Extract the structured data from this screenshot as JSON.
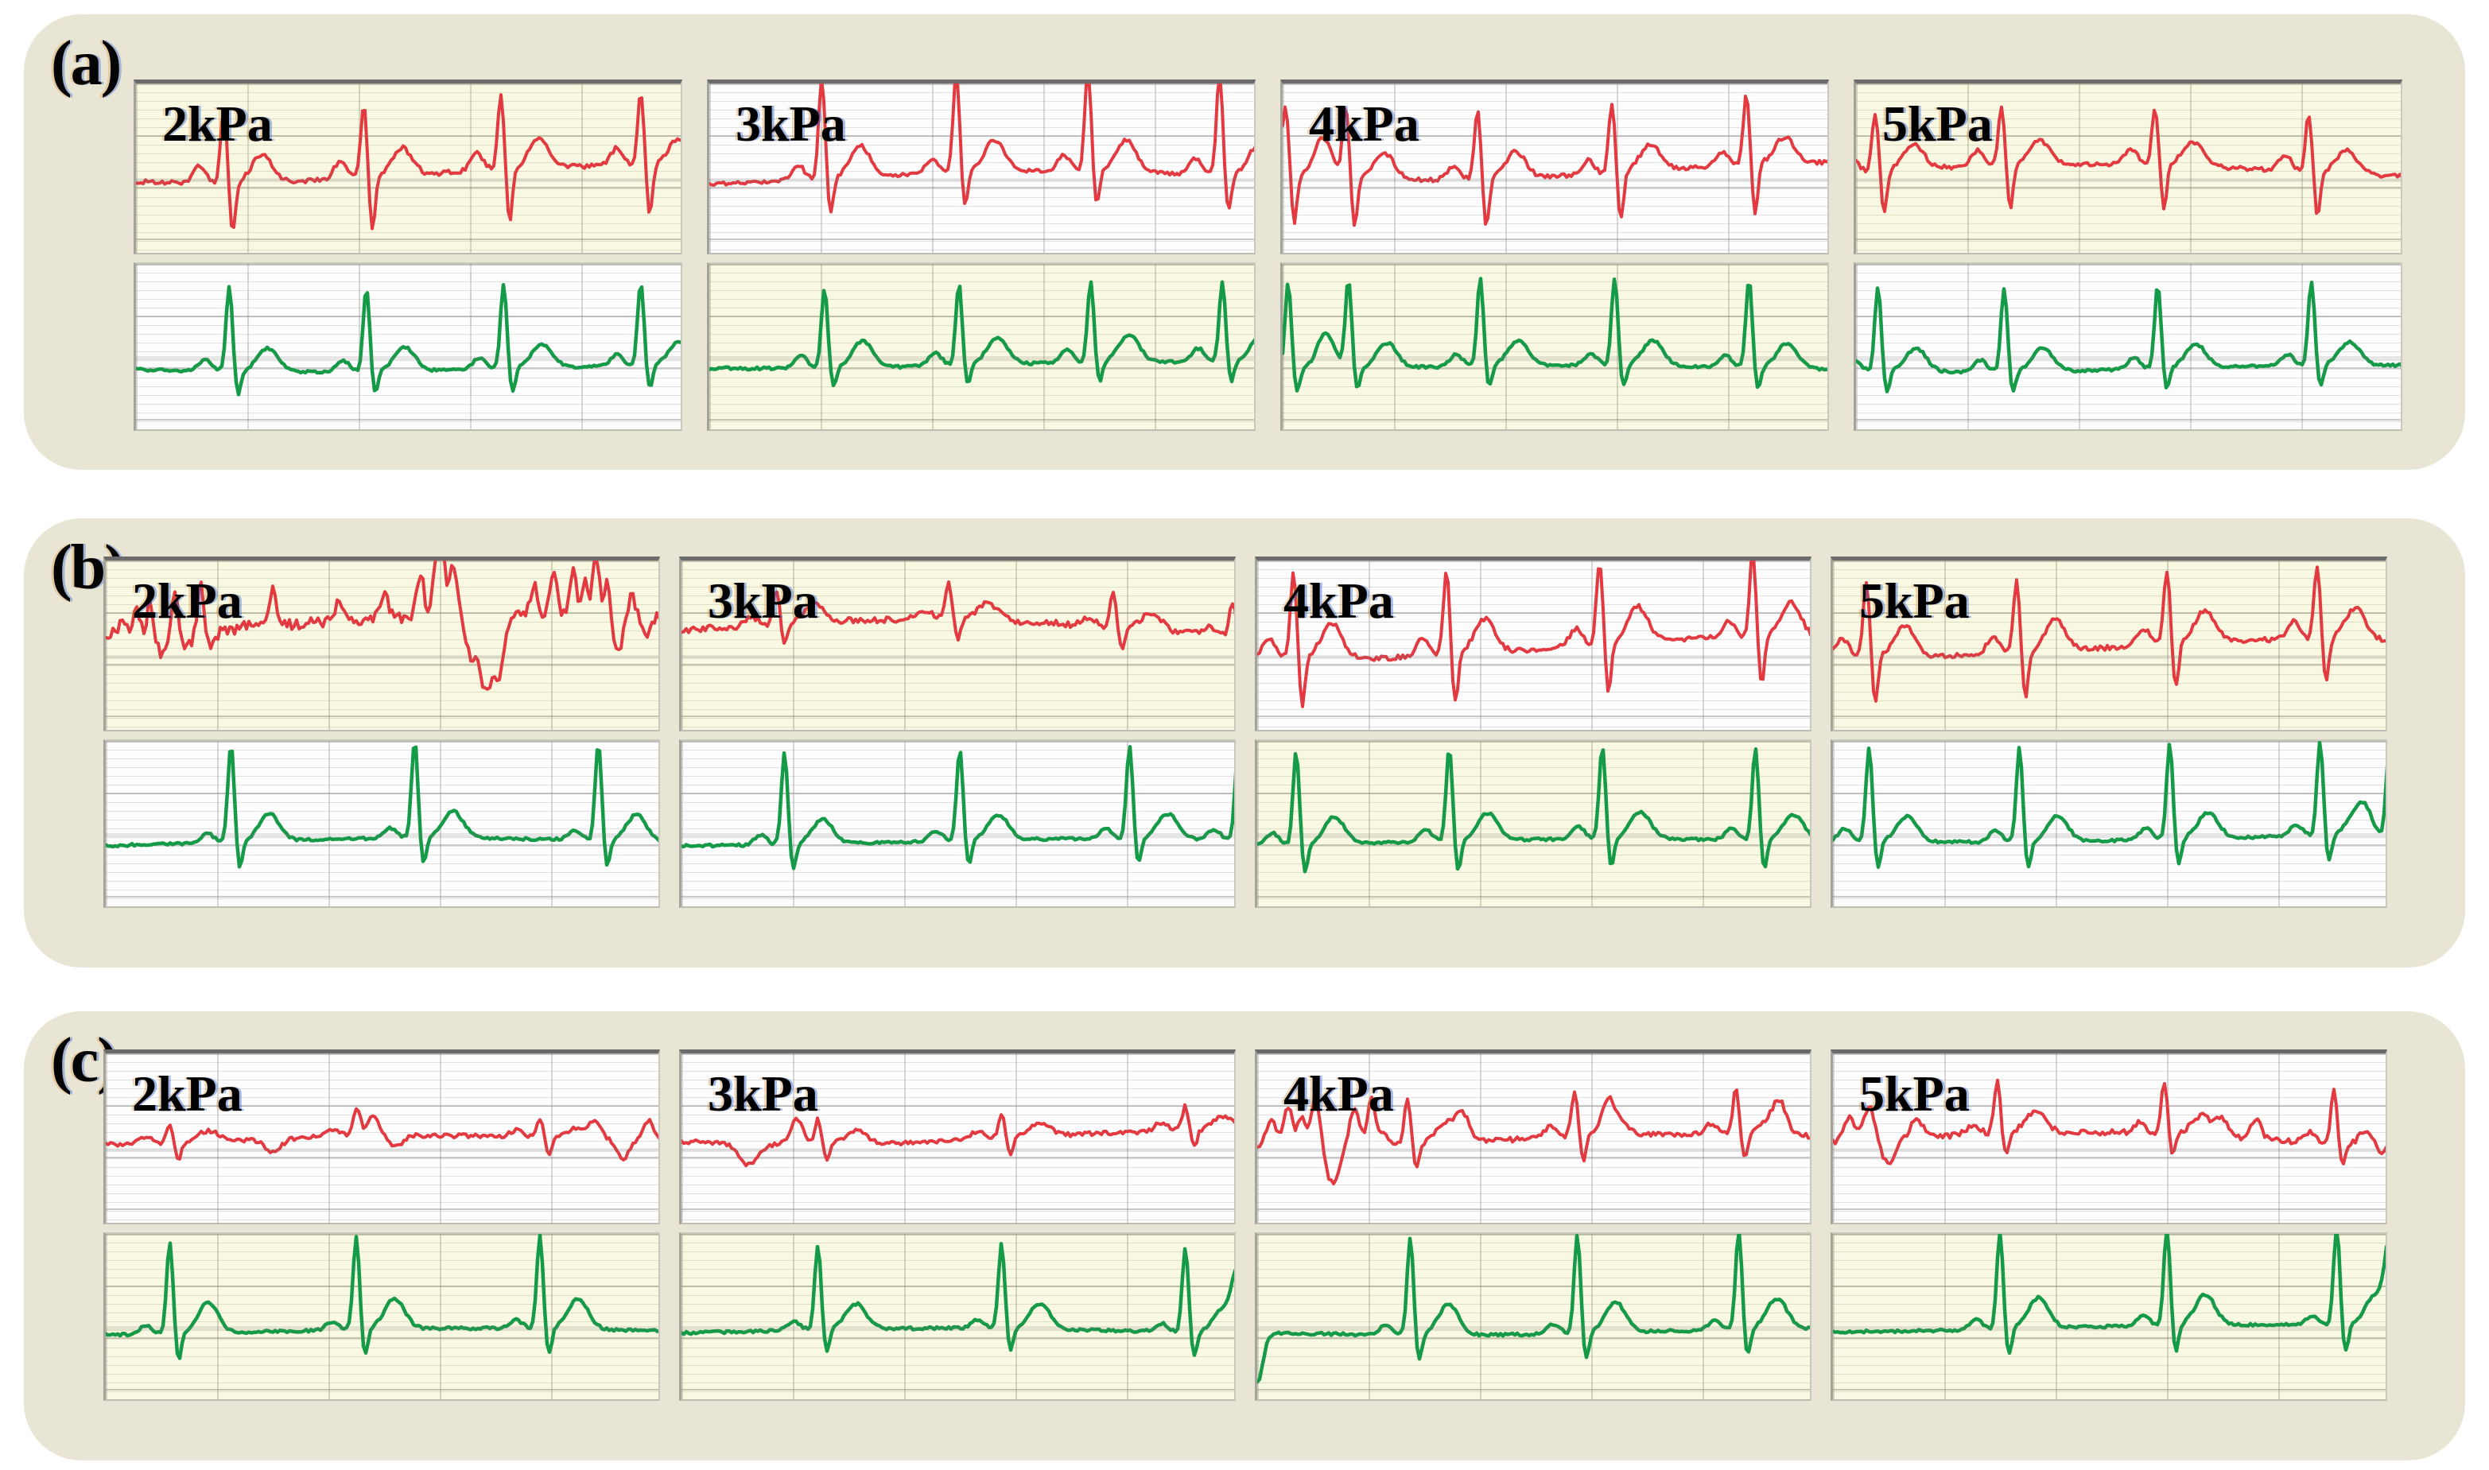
{
  "figure": {
    "group_labels": [
      "(a)",
      "(b)",
      "(c)"
    ],
    "pressure_labels": [
      "2kPa",
      "3kPa",
      "4kPa",
      "5kPa"
    ]
  },
  "colors": {
    "red_trace": "#e23a40",
    "green_trace": "#159a48",
    "panel_yellow": "#f9f8e2",
    "panel_white": "#fdfdfd",
    "box_background": "#e9e5d4",
    "grid_major": "#b9b9ae",
    "grid_minor": "#dddcc8",
    "panel_top_border": "#6a6a6a",
    "label_color": "#000000"
  },
  "chart_data": {
    "type": "line",
    "grid": true,
    "axis_ticks_visible": false,
    "channels": [
      "red (top strip)",
      "green (bottom strip)"
    ],
    "groups": [
      {
        "label": "(a)",
        "panels": [
          {
            "label": "2kPa",
            "top_bg": "yellow",
            "bottom_bg": "white",
            "red": {
              "beats": [
                0.16,
                0.415,
                0.665,
                0.92
              ],
              "qrs": 0.42,
              "s": 0.3,
              "p": 0.1,
              "t": 0.16,
              "base": 0.52,
              "noise": 0.013,
              "wander": 0.05,
              "phase": 1.0
            },
            "green": {
              "beats": [
                0.17,
                0.42,
                0.67,
                0.92
              ],
              "qrs": 0.5,
              "s": 0.14,
              "p": 0.07,
              "t": 0.14,
              "base": 0.62,
              "noise": 0.008,
              "wander": 0.02,
              "phase": 0.3
            }
          },
          {
            "label": "3kPa",
            "top_bg": "white",
            "bottom_bg": "yellow",
            "red": {
              "beats": [
                0.205,
                0.45,
                0.69,
                0.93
              ],
              "qrs": 0.58,
              "s": 0.2,
              "p": 0.09,
              "t": 0.18,
              "base": 0.54,
              "noise": 0.01,
              "wander": 0.04,
              "phase": 2.1
            },
            "green": {
              "beats": [
                0.21,
                0.455,
                0.695,
                0.935
              ],
              "qrs": 0.48,
              "s": 0.12,
              "p": 0.08,
              "t": 0.16,
              "base": 0.6,
              "noise": 0.008,
              "wander": 0.02,
              "phase": 1.2
            }
          },
          {
            "label": "4kPa",
            "top_bg": "white",
            "bottom_bg": "yellow",
            "red": {
              "beats": [
                0.005,
                0.115,
                0.355,
                0.6,
                0.845
              ],
              "qrs": 0.4,
              "s": 0.28,
              "p": 0.08,
              "t": 0.15,
              "base": 0.5,
              "noise": 0.012,
              "wander": 0.05,
              "phase": 0.4
            },
            "green": {
              "beats": [
                0.01,
                0.12,
                0.36,
                0.605,
                0.85
              ],
              "qrs": 0.52,
              "s": 0.13,
              "p": 0.07,
              "t": 0.15,
              "base": 0.62,
              "noise": 0.008,
              "wander": 0.02,
              "phase": 2.5
            }
          },
          {
            "label": "5kPa",
            "top_bg": "yellow",
            "bottom_bg": "white",
            "red": {
              "beats": [
                0.035,
                0.265,
                0.545,
                0.825
              ],
              "qrs": 0.33,
              "s": 0.26,
              "p": 0.09,
              "t": 0.14,
              "base": 0.5,
              "noise": 0.012,
              "wander": 0.04,
              "phase": 3.0
            },
            "green": {
              "beats": [
                0.04,
                0.27,
                0.55,
                0.83
              ],
              "qrs": 0.5,
              "s": 0.13,
              "p": 0.07,
              "t": 0.14,
              "base": 0.62,
              "noise": 0.008,
              "wander": 0.02,
              "phase": 0.8
            }
          }
        ]
      },
      {
        "label": "(b)",
        "panels": [
          {
            "label": "2kPa",
            "top_bg": "yellow",
            "bottom_bg": "white",
            "red": {
              "beats": [],
              "qrs": 0,
              "s": 0,
              "p": 0,
              "t": 0,
              "base": 0.4,
              "noise": 0.035,
              "wander": 0.05,
              "wander2": 0.05,
              "phase": 1.7,
              "events": [
                {
                  "x": 0.03,
                  "a": 0.1,
                  "w": 6
                },
                {
                  "x": 0.055,
                  "a": 0.16,
                  "w": 5
                },
                {
                  "x": 0.08,
                  "a": 0.2,
                  "w": 5
                },
                {
                  "x": 0.1,
                  "a": -0.12,
                  "w": 8
                },
                {
                  "x": 0.125,
                  "a": 0.24,
                  "w": 5
                },
                {
                  "x": 0.145,
                  "a": -0.1,
                  "w": 9
                },
                {
                  "x": 0.17,
                  "a": 0.26,
                  "w": 5
                },
                {
                  "x": 0.19,
                  "a": -0.08,
                  "w": 8
                },
                {
                  "x": 0.3,
                  "a": 0.22,
                  "w": 5
                },
                {
                  "x": 0.42,
                  "a": 0.12,
                  "w": 6
                },
                {
                  "x": 0.5,
                  "a": 0.14,
                  "w": 6
                },
                {
                  "x": 0.565,
                  "a": 0.26,
                  "w": 6
                },
                {
                  "x": 0.6,
                  "a": 0.44,
                  "w": 9
                },
                {
                  "x": 0.625,
                  "a": 0.28,
                  "w": 6
                },
                {
                  "x": 0.655,
                  "a": -0.22,
                  "w": 8
                },
                {
                  "x": 0.685,
                  "a": -0.46,
                  "w": 13
                },
                {
                  "x": 0.71,
                  "a": -0.26,
                  "w": 8
                },
                {
                  "x": 0.77,
                  "a": 0.16,
                  "w": 6
                },
                {
                  "x": 0.805,
                  "a": 0.22,
                  "w": 6
                },
                {
                  "x": 0.84,
                  "a": 0.3,
                  "w": 5
                },
                {
                  "x": 0.86,
                  "a": 0.18,
                  "w": 5
                },
                {
                  "x": 0.88,
                  "a": 0.36,
                  "w": 6
                },
                {
                  "x": 0.9,
                  "a": 0.2,
                  "w": 5
                },
                {
                  "x": 0.92,
                  "a": -0.22,
                  "w": 7
                },
                {
                  "x": 0.945,
                  "a": 0.14,
                  "w": 5
                },
                {
                  "x": 0.97,
                  "a": -0.12,
                  "w": 6
                }
              ]
            },
            "green": {
              "beats": [
                0.225,
                0.555,
                0.885
              ],
              "qrs": 0.58,
              "s": 0.16,
              "p": 0.06,
              "t": 0.16,
              "base": 0.6,
              "noise": 0.008,
              "wander": 0.025,
              "phase": 2.2
            }
          },
          {
            "label": "3kPa",
            "top_bg": "yellow",
            "bottom_bg": "white",
            "red": {
              "beats": [
                0.17,
                0.48,
                0.775,
                0.99
              ],
              "qrs": 0.2,
              "s": 0.12,
              "p": 0.05,
              "t": 0.1,
              "base": 0.42,
              "noise": 0.018,
              "wander": 0.05,
              "wander2": 0.04,
              "phase": 2.8
            },
            "green": {
              "beats": [
                0.185,
                0.5,
                0.805,
                1.0
              ],
              "qrs": 0.55,
              "s": 0.15,
              "p": 0.06,
              "t": 0.15,
              "base": 0.6,
              "noise": 0.008,
              "wander": 0.02,
              "phase": 1.5
            }
          },
          {
            "label": "4kPa",
            "top_bg": "white",
            "bottom_bg": "yellow",
            "red": {
              "beats": [
                0.065,
                0.34,
                0.615,
                0.89
              ],
              "qrs": 0.48,
              "s": 0.28,
              "p": 0.1,
              "t": 0.2,
              "base": 0.5,
              "noise": 0.014,
              "wander": 0.06,
              "phase": 0.9
            },
            "green": {
              "beats": [
                0.07,
                0.345,
                0.62,
                0.895
              ],
              "qrs": 0.55,
              "s": 0.18,
              "p": 0.07,
              "t": 0.16,
              "base": 0.6,
              "noise": 0.008,
              "wander": 0.02,
              "phase": 2.0
            }
          },
          {
            "label": "5kPa",
            "top_bg": "yellow",
            "bottom_bg": "white",
            "red": {
              "beats": [
                0.06,
                0.33,
                0.6,
                0.87
              ],
              "qrs": 0.42,
              "s": 0.26,
              "p": 0.1,
              "t": 0.18,
              "base": 0.5,
              "noise": 0.013,
              "wander": 0.05,
              "phase": 1.1
            },
            "green": {
              "beats": [
                0.065,
                0.335,
                0.605,
                0.875,
                1.0
              ],
              "qrs": 0.56,
              "s": 0.16,
              "p": 0.07,
              "t": 0.15,
              "base": 0.58,
              "noise": 0.008,
              "wander": 0.02,
              "phase": 0.5
            }
          }
        ]
      },
      {
        "label": "(c)",
        "panels": [
          {
            "label": "2kPa",
            "top_bg": "white",
            "bottom_bg": "yellow",
            "red": {
              "beats": [
                0.115,
                0.45,
                0.78
              ],
              "qrs": 0.1,
              "s": 0.1,
              "p": 0.04,
              "t": 0.06,
              "base": 0.5,
              "noise": 0.012,
              "wander": 0.03,
              "phase": 2.3,
              "events": [
                {
                  "x": 0.3,
                  "a": -0.08,
                  "w": 14
                },
                {
                  "x": 0.47,
                  "a": 0.14,
                  "w": 16
                },
                {
                  "x": 0.52,
                  "a": -0.12,
                  "w": 14
                },
                {
                  "x": 0.88,
                  "a": 0.1,
                  "w": 10
                },
                {
                  "x": 0.93,
                  "a": -0.1,
                  "w": 10
                },
                {
                  "x": 0.975,
                  "a": 0.12,
                  "w": 10
                }
              ]
            },
            "green": {
              "beats": [
                0.115,
                0.45,
                0.78
              ],
              "qrs": 0.55,
              "s": 0.16,
              "p": 0.05,
              "t": 0.18,
              "base": 0.58,
              "noise": 0.008,
              "wander": 0.02,
              "phase": 1.9
            }
          },
          {
            "label": "3kPa",
            "top_bg": "white",
            "bottom_bg": "yellow",
            "red": {
              "beats": [
                0.245,
                0.575,
                0.905
              ],
              "qrs": 0.14,
              "s": 0.1,
              "p": 0.05,
              "t": 0.08,
              "base": 0.48,
              "noise": 0.012,
              "wander": 0.04,
              "phase": 0.6,
              "events": [
                {
                  "x": 0.12,
                  "a": -0.12,
                  "w": 16
                },
                {
                  "x": 0.21,
                  "a": 0.1,
                  "w": 10
                }
              ]
            },
            "green": {
              "beats": [
                0.245,
                0.575,
                0.905
              ],
              "qrs": 0.5,
              "s": 0.14,
              "p": 0.05,
              "t": 0.15,
              "base": 0.58,
              "noise": 0.008,
              "wander": 0.02,
              "phase": 2.7,
              "events": [
                {
                  "x": 1.0,
                  "a": 0.35,
                  "w": 10
                }
              ]
            }
          },
          {
            "label": "4kPa",
            "top_bg": "white",
            "bottom_bg": "yellow",
            "red": {
              "beats": [
                0.27,
                0.57,
                0.86
              ],
              "qrs": 0.26,
              "s": 0.14,
              "p": 0.06,
              "t": 0.12,
              "base": 0.5,
              "noise": 0.014,
              "wander": 0.04,
              "phase": 1.4,
              "events": [
                {
                  "x": 0.025,
                  "a": 0.16,
                  "w": 9
                },
                {
                  "x": 0.055,
                  "a": 0.24,
                  "w": 8
                },
                {
                  "x": 0.08,
                  "a": 0.18,
                  "w": 7
                },
                {
                  "x": 0.105,
                  "a": 0.3,
                  "w": 8
                },
                {
                  "x": 0.135,
                  "a": -0.2,
                  "w": 12
                },
                {
                  "x": 0.175,
                  "a": 0.22,
                  "w": 9
                },
                {
                  "x": 0.205,
                  "a": 0.26,
                  "w": 7
                },
                {
                  "x": 0.37,
                  "a": 0.14,
                  "w": 12
                },
                {
                  "x": 0.63,
                  "a": 0.1,
                  "w": 10
                },
                {
                  "x": 0.94,
                  "a": 0.1,
                  "w": 10
                }
              ]
            },
            "green": {
              "beats": [
                0.275,
                0.575,
                0.865
              ],
              "qrs": 0.58,
              "s": 0.16,
              "p": 0.06,
              "t": 0.18,
              "base": 0.58,
              "noise": 0.008,
              "wander": 0.02,
              "phase": 0.2,
              "events": [
                {
                  "x": 0.0,
                  "a": -0.3,
                  "w": 10
                }
              ]
            }
          },
          {
            "label": "5kPa",
            "top_bg": "white",
            "bottom_bg": "yellow",
            "red": {
              "beats": [
                0.295,
                0.595,
                0.9
              ],
              "qrs": 0.3,
              "s": 0.12,
              "p": 0.06,
              "t": 0.12,
              "base": 0.5,
              "noise": 0.016,
              "wander": 0.05,
              "phase": 2.9,
              "events": [
                {
                  "x": 0.03,
                  "a": 0.14,
                  "w": 10
                },
                {
                  "x": 0.065,
                  "a": 0.2,
                  "w": 9
                },
                {
                  "x": 0.1,
                  "a": -0.14,
                  "w": 12
                },
                {
                  "x": 0.15,
                  "a": 0.12,
                  "w": 10
                },
                {
                  "x": 0.7,
                  "a": 0.1,
                  "w": 10
                },
                {
                  "x": 0.76,
                  "a": 0.12,
                  "w": 9
                },
                {
                  "x": 0.98,
                  "a": -0.12,
                  "w": 10
                }
              ]
            },
            "green": {
              "beats": [
                0.3,
                0.6,
                0.905
              ],
              "qrs": 0.58,
              "s": 0.16,
              "p": 0.06,
              "t": 0.18,
              "base": 0.56,
              "noise": 0.008,
              "wander": 0.02,
              "phase": 1.6,
              "events": [
                {
                  "x": 1.0,
                  "a": 0.45,
                  "w": 9
                }
              ]
            }
          }
        ]
      }
    ]
  }
}
